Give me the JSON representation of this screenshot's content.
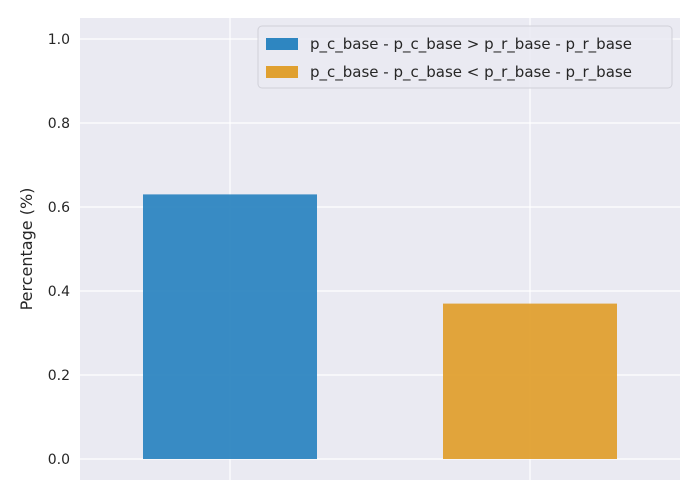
{
  "chart_data": {
    "type": "bar",
    "title": "",
    "xlabel": "",
    "ylabel": "Percentage (%)",
    "ylim": [
      -0.05,
      1.05
    ],
    "yticks": [
      "0.0",
      "0.2",
      "0.4",
      "0.6",
      "0.8",
      "1.0"
    ],
    "grid": true,
    "legend_position": "top-right",
    "background_color": "#eaeaf2",
    "grid_color": "#ffffff",
    "series": [
      {
        "name": "p_c_base - p_c_base > p_r_base - p_r_base",
        "value": 0.63,
        "color": "#2e86c1"
      },
      {
        "name": "p_c_base - p_c_base < p_r_base - p_r_base",
        "value": 0.37,
        "color": "#e0a030"
      }
    ]
  }
}
